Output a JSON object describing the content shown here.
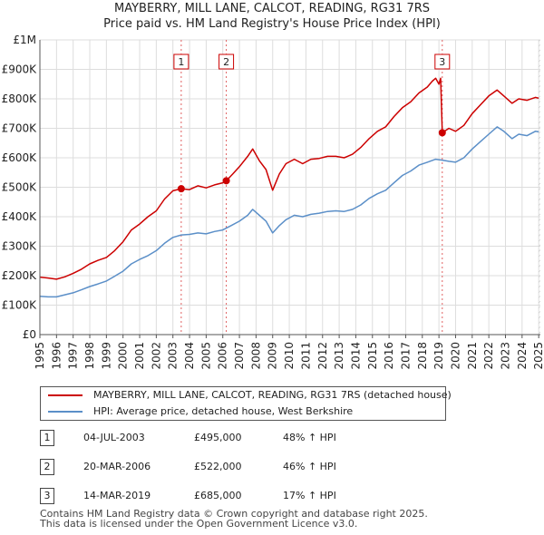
{
  "title_line1": "MAYBERRY, MILL LANE, CALCOT, READING, RG31 7RS",
  "title_line2": "Price paid vs. HM Land Registry's House Price Index (HPI)",
  "chart_data": {
    "type": "line",
    "title": "MAYBERRY, MILL LANE, CALCOT, READING, RG31 7RS — Price paid vs. HM Land Registry's House Price Index (HPI)",
    "xlabel": "",
    "ylabel": "",
    "xlim": [
      1995,
      2025.1
    ],
    "ylim": [
      0,
      1000000
    ],
    "grid": true,
    "y_ticks": [
      {
        "value": 0,
        "label": "£0"
      },
      {
        "value": 100000,
        "label": "£100K"
      },
      {
        "value": 200000,
        "label": "£200K"
      },
      {
        "value": 300000,
        "label": "£300K"
      },
      {
        "value": 400000,
        "label": "£400K"
      },
      {
        "value": 500000,
        "label": "£500K"
      },
      {
        "value": 600000,
        "label": "£600K"
      },
      {
        "value": 700000,
        "label": "£700K"
      },
      {
        "value": 800000,
        "label": "£800K"
      },
      {
        "value": 900000,
        "label": "£900K"
      },
      {
        "value": 1000000,
        "label": "£1M"
      }
    ],
    "x_ticks": [
      "1995",
      "1996",
      "1997",
      "1998",
      "1999",
      "2000",
      "2001",
      "2002",
      "2003",
      "2004",
      "2005",
      "2006",
      "2007",
      "2008",
      "2009",
      "2010",
      "2011",
      "2012",
      "2013",
      "2014",
      "2015",
      "2016",
      "2017",
      "2018",
      "2019",
      "2020",
      "2021",
      "2022",
      "2023",
      "2024",
      "2025"
    ],
    "series": [
      {
        "name": "MAYBERRY, MILL LANE, CALCOT, READING, RG31 7RS (detached house)",
        "color": "#cc0000",
        "points": [
          [
            1995.0,
            195000
          ],
          [
            1995.5,
            192000
          ],
          [
            1996.0,
            188000
          ],
          [
            1996.5,
            196000
          ],
          [
            1997.0,
            208000
          ],
          [
            1997.5,
            222000
          ],
          [
            1998.0,
            240000
          ],
          [
            1998.5,
            252000
          ],
          [
            1999.0,
            262000
          ],
          [
            1999.5,
            285000
          ],
          [
            2000.0,
            315000
          ],
          [
            2000.5,
            355000
          ],
          [
            2001.0,
            375000
          ],
          [
            2001.5,
            400000
          ],
          [
            2002.0,
            420000
          ],
          [
            2002.5,
            460000
          ],
          [
            2003.0,
            488000
          ],
          [
            2003.5,
            495000
          ],
          [
            2004.0,
            492000
          ],
          [
            2004.5,
            505000
          ],
          [
            2005.0,
            498000
          ],
          [
            2005.5,
            508000
          ],
          [
            2006.0,
            515000
          ],
          [
            2006.21,
            522000
          ],
          [
            2006.6,
            545000
          ],
          [
            2007.0,
            570000
          ],
          [
            2007.5,
            605000
          ],
          [
            2007.8,
            630000
          ],
          [
            2008.2,
            590000
          ],
          [
            2008.6,
            560000
          ],
          [
            2009.0,
            490000
          ],
          [
            2009.4,
            545000
          ],
          [
            2009.8,
            580000
          ],
          [
            2010.3,
            595000
          ],
          [
            2010.8,
            580000
          ],
          [
            2011.3,
            595000
          ],
          [
            2011.8,
            598000
          ],
          [
            2012.3,
            605000
          ],
          [
            2012.8,
            605000
          ],
          [
            2013.3,
            600000
          ],
          [
            2013.8,
            612000
          ],
          [
            2014.3,
            635000
          ],
          [
            2014.8,
            665000
          ],
          [
            2015.3,
            690000
          ],
          [
            2015.8,
            705000
          ],
          [
            2016.3,
            740000
          ],
          [
            2016.8,
            770000
          ],
          [
            2017.3,
            790000
          ],
          [
            2017.8,
            820000
          ],
          [
            2018.3,
            840000
          ],
          [
            2018.6,
            860000
          ],
          [
            2018.8,
            870000
          ],
          [
            2019.0,
            850000
          ],
          [
            2019.1,
            870000
          ],
          [
            2019.2,
            685000
          ],
          [
            2019.6,
            700000
          ],
          [
            2020.0,
            690000
          ],
          [
            2020.5,
            710000
          ],
          [
            2021.0,
            750000
          ],
          [
            2021.5,
            780000
          ],
          [
            2022.0,
            810000
          ],
          [
            2022.5,
            830000
          ],
          [
            2022.9,
            810000
          ],
          [
            2023.4,
            785000
          ],
          [
            2023.8,
            800000
          ],
          [
            2024.3,
            795000
          ],
          [
            2024.8,
            805000
          ],
          [
            2025.0,
            802000
          ]
        ]
      },
      {
        "name": "HPI: Average price, detached house, West Berkshire",
        "color": "#5b8fc8",
        "points": [
          [
            1995.0,
            130000
          ],
          [
            1995.5,
            128000
          ],
          [
            1996.0,
            128000
          ],
          [
            1996.5,
            135000
          ],
          [
            1997.0,
            142000
          ],
          [
            1997.5,
            152000
          ],
          [
            1998.0,
            163000
          ],
          [
            1998.5,
            172000
          ],
          [
            1999.0,
            182000
          ],
          [
            1999.5,
            198000
          ],
          [
            2000.0,
            215000
          ],
          [
            2000.5,
            240000
          ],
          [
            2001.0,
            255000
          ],
          [
            2001.5,
            268000
          ],
          [
            2002.0,
            285000
          ],
          [
            2002.5,
            310000
          ],
          [
            2003.0,
            330000
          ],
          [
            2003.5,
            338000
          ],
          [
            2004.0,
            340000
          ],
          [
            2004.5,
            345000
          ],
          [
            2005.0,
            342000
          ],
          [
            2005.5,
            350000
          ],
          [
            2006.0,
            355000
          ],
          [
            2006.5,
            370000
          ],
          [
            2007.0,
            385000
          ],
          [
            2007.5,
            405000
          ],
          [
            2007.8,
            425000
          ],
          [
            2008.2,
            405000
          ],
          [
            2008.6,
            385000
          ],
          [
            2009.0,
            345000
          ],
          [
            2009.4,
            370000
          ],
          [
            2009.8,
            390000
          ],
          [
            2010.3,
            405000
          ],
          [
            2010.8,
            400000
          ],
          [
            2011.3,
            408000
          ],
          [
            2011.8,
            412000
          ],
          [
            2012.3,
            418000
          ],
          [
            2012.8,
            420000
          ],
          [
            2013.3,
            418000
          ],
          [
            2013.8,
            425000
          ],
          [
            2014.3,
            440000
          ],
          [
            2014.8,
            462000
          ],
          [
            2015.3,
            478000
          ],
          [
            2015.8,
            490000
          ],
          [
            2016.3,
            515000
          ],
          [
            2016.8,
            540000
          ],
          [
            2017.3,
            555000
          ],
          [
            2017.8,
            575000
          ],
          [
            2018.3,
            585000
          ],
          [
            2018.8,
            595000
          ],
          [
            2019.2,
            592000
          ],
          [
            2019.6,
            588000
          ],
          [
            2020.0,
            585000
          ],
          [
            2020.5,
            600000
          ],
          [
            2021.0,
            630000
          ],
          [
            2021.5,
            655000
          ],
          [
            2022.0,
            680000
          ],
          [
            2022.5,
            705000
          ],
          [
            2022.9,
            690000
          ],
          [
            2023.4,
            665000
          ],
          [
            2023.8,
            680000
          ],
          [
            2024.3,
            675000
          ],
          [
            2024.8,
            690000
          ],
          [
            2025.0,
            688000
          ]
        ]
      }
    ],
    "markers": [
      {
        "label": "1",
        "x": 2003.5,
        "y": 495000
      },
      {
        "label": "2",
        "x": 2006.21,
        "y": 522000
      },
      {
        "label": "3",
        "x": 2019.2,
        "y": 685000
      }
    ]
  },
  "legend": {
    "property_label": "MAYBERRY, MILL LANE, CALCOT, READING, RG31 7RS (detached house)",
    "hpi_label": "HPI: Average price, detached house, West Berkshire",
    "property_color": "#cc0000",
    "hpi_color": "#5b8fc8"
  },
  "sales": [
    {
      "num": "1",
      "date": "04-JUL-2003",
      "price": "£495,000",
      "hpi": "48% ↑ HPI"
    },
    {
      "num": "2",
      "date": "20-MAR-2006",
      "price": "£522,000",
      "hpi": "46% ↑ HPI"
    },
    {
      "num": "3",
      "date": "14-MAR-2019",
      "price": "£685,000",
      "hpi": "17% ↑ HPI"
    }
  ],
  "footer": {
    "line1": "Contains HM Land Registry data © Crown copyright and database right 2025.",
    "line2": "This data is licensed under the Open Government Licence v3.0."
  }
}
